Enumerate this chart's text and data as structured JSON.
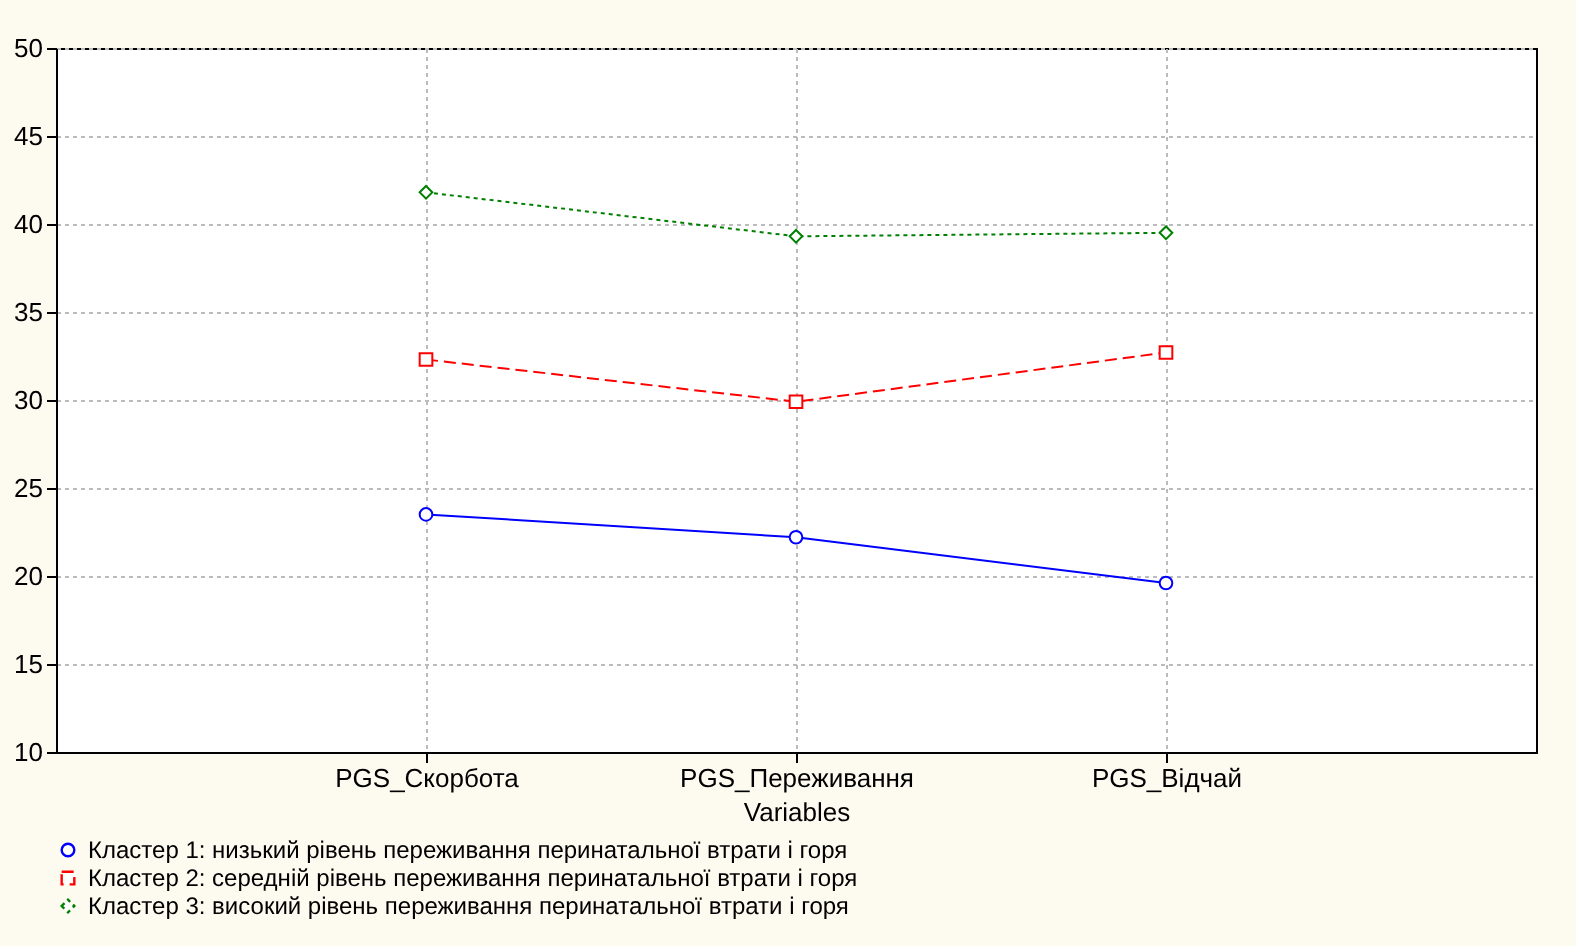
{
  "chart_data": {
    "type": "line",
    "xlabel": "Variables",
    "categories": [
      "PGS_Скорбота",
      "PGS_Переживання",
      "PGS_Відчай"
    ],
    "series": [
      {
        "name": "Кластер 1: низький рівень переживання перинатальної втрати і горя",
        "color": "#0000ff",
        "values": [
          23.5,
          22.2,
          19.6
        ],
        "marker": "circle",
        "line_style": "solid"
      },
      {
        "name": "Кластер 2: середній рівень переживання перинатальної втрати і горя",
        "color": "#ff0000",
        "values": [
          32.3,
          29.9,
          32.7
        ],
        "marker": "square",
        "line_style": "dashed"
      },
      {
        "name": "Кластер 3: високий рівень переживання перинатальної втрати і горя",
        "color": "#008000",
        "values": [
          41.8,
          39.3,
          39.5
        ],
        "marker": "diamond",
        "line_style": "dotted"
      }
    ],
    "ylim": [
      10,
      50
    ],
    "yticks": [
      10,
      15,
      20,
      25,
      30,
      35,
      40,
      45,
      50
    ],
    "grid": true,
    "legend": "bottom"
  }
}
